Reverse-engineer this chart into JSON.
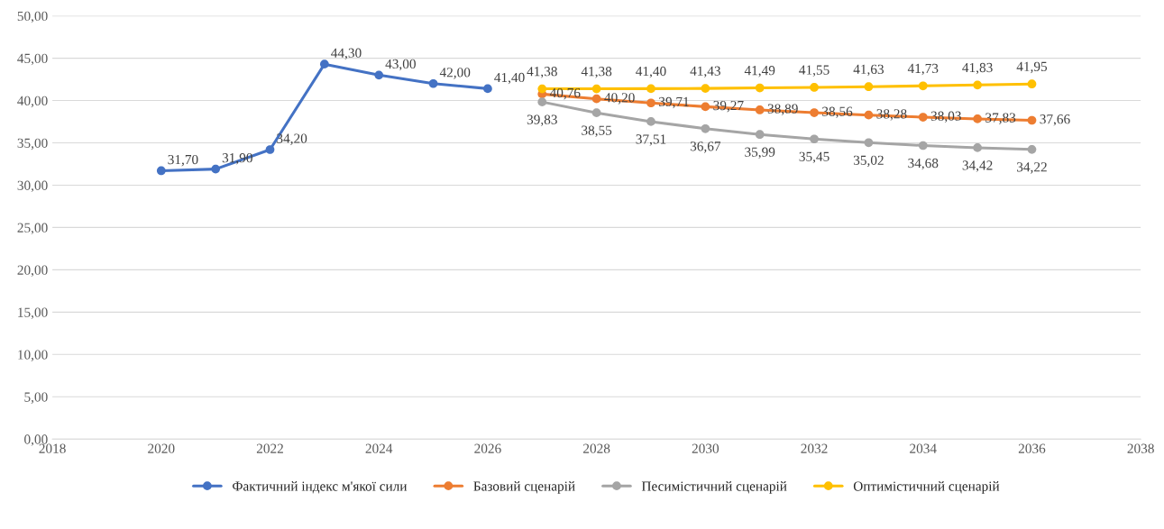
{
  "chart_data": {
    "type": "line",
    "xlim": [
      2018,
      2038
    ],
    "xticks": [
      2018,
      2020,
      2022,
      2024,
      2026,
      2028,
      2030,
      2032,
      2034,
      2036,
      2038
    ],
    "ylim": [
      0,
      50
    ],
    "yticks": [
      {
        "value": 0,
        "label": "0,00"
      },
      {
        "value": 5,
        "label": "5,00"
      },
      {
        "value": 10,
        "label": "10,00"
      },
      {
        "value": 15,
        "label": "15,00"
      },
      {
        "value": 20,
        "label": "20,00"
      },
      {
        "value": 25,
        "label": "25,00"
      },
      {
        "value": 30,
        "label": "30,00"
      },
      {
        "value": 35,
        "label": "35,00"
      },
      {
        "value": 40,
        "label": "40,00"
      },
      {
        "value": 45,
        "label": "45,00"
      },
      {
        "value": 50,
        "label": "50,00"
      }
    ],
    "grid": "y",
    "legend": "bottom",
    "marker": "circle",
    "line_style": "solid",
    "series": [
      {
        "name": "Фактичний індекс м'якої сили",
        "color": "#4472c4",
        "x": [
          2020,
          2021,
          2022,
          2023,
          2024,
          2025,
          2026
        ],
        "values": [
          31.7,
          31.9,
          34.2,
          44.3,
          43.0,
          42.0,
          41.4
        ],
        "value_labels": [
          "31,70",
          "31,90",
          "34,20",
          "44,30",
          "43,00",
          "42,00",
          "41,40"
        ]
      },
      {
        "name": "Базовий сценарій",
        "color": "#ed7d31",
        "x": [
          2027,
          2028,
          2029,
          2030,
          2031,
          2032,
          2033,
          2034,
          2035,
          2036
        ],
        "values": [
          40.76,
          40.2,
          39.71,
          39.27,
          38.89,
          38.56,
          38.28,
          38.03,
          37.83,
          37.66
        ],
        "value_labels": [
          "40,76",
          "40,20",
          "39,71",
          "39,27",
          "38,89",
          "38,56",
          "38,28",
          "38,03",
          "37,83",
          "37,66"
        ]
      },
      {
        "name": "Песимістичний сценарій",
        "color": "#a5a5a5",
        "x": [
          2027,
          2028,
          2029,
          2030,
          2031,
          2032,
          2033,
          2034,
          2035,
          2036
        ],
        "values": [
          39.83,
          38.55,
          37.51,
          36.67,
          35.99,
          35.45,
          35.02,
          34.68,
          34.42,
          34.22
        ],
        "value_labels": [
          "39,83",
          "38,55",
          "37,51",
          "36,67",
          "35,99",
          "35,45",
          "35,02",
          "34,68",
          "34,42",
          "34,22"
        ]
      },
      {
        "name": "Оптимістичний сценарій",
        "color": "#ffc000",
        "x": [
          2027,
          2028,
          2029,
          2030,
          2031,
          2032,
          2033,
          2034,
          2035,
          2036
        ],
        "values": [
          41.38,
          41.38,
          41.4,
          41.43,
          41.49,
          41.55,
          41.63,
          41.73,
          41.83,
          41.95
        ],
        "value_labels": [
          "41,38",
          "41,38",
          "41,40",
          "41,43",
          "41,49",
          "41,55",
          "41,63",
          "41,73",
          "41,83",
          "41,95"
        ]
      }
    ]
  }
}
